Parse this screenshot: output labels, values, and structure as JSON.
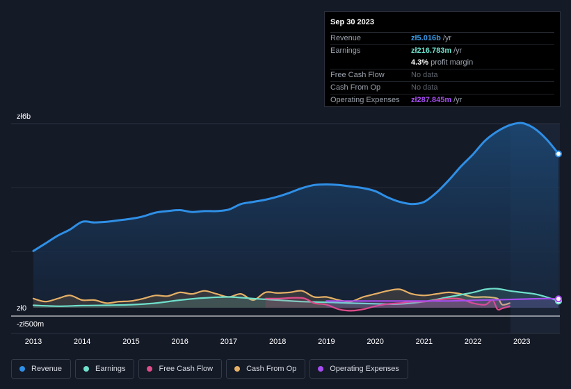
{
  "tooltip": {
    "date": "Sep 30 2023",
    "rows": [
      {
        "label": "Revenue",
        "value": "zł5.016b",
        "unit": "/yr",
        "color": "#3a9be6"
      },
      {
        "label": "Earnings",
        "value": "zł216.783m",
        "unit": "/yr",
        "color": "#6fe0cc"
      },
      {
        "label": "",
        "value": "4.3%",
        "unit": "profit margin",
        "color": "#ffffff"
      },
      {
        "label": "Free Cash Flow",
        "nodata": "No data"
      },
      {
        "label": "Cash From Op",
        "nodata": "No data"
      },
      {
        "label": "Operating Expenses",
        "value": "zł287.845m",
        "unit": "/yr",
        "color": "#a64df0"
      }
    ]
  },
  "legend": [
    {
      "label": "Revenue",
      "color": "#2f8fe6"
    },
    {
      "label": "Earnings",
      "color": "#6fe0cc"
    },
    {
      "label": "Free Cash Flow",
      "color": "#e04c8a"
    },
    {
      "label": "Cash From Op",
      "color": "#e6b066"
    },
    {
      "label": "Operating Expenses",
      "color": "#a64df0"
    }
  ],
  "chart_data": {
    "type": "area",
    "title": "",
    "xlabel": "",
    "ylabel": "",
    "y_axis_labels": [
      "zł6b",
      "zł0",
      "-zł500m"
    ],
    "x_ticks": [
      "2013",
      "2014",
      "2015",
      "2016",
      "2017",
      "2018",
      "2019",
      "2020",
      "2021",
      "2022",
      "2023"
    ],
    "x_range": [
      2013.0,
      2023.75
    ],
    "ylim": [
      -0.5,
      6.0
    ],
    "units": "zł billions",
    "series": [
      {
        "name": "Revenue",
        "color": "#2f8fe6",
        "x": [
          2013.0,
          2013.25,
          2013.5,
          2013.75,
          2014.0,
          2014.25,
          2014.5,
          2014.75,
          2015.0,
          2015.25,
          2015.5,
          2015.75,
          2016.0,
          2016.25,
          2016.5,
          2016.75,
          2017.0,
          2017.25,
          2017.5,
          2017.75,
          2018.0,
          2018.25,
          2018.5,
          2018.75,
          2019.0,
          2019.25,
          2019.5,
          2019.75,
          2020.0,
          2020.25,
          2020.5,
          2020.75,
          2021.0,
          2021.25,
          2021.5,
          2021.75,
          2022.0,
          2022.25,
          2022.5,
          2022.75,
          2023.0,
          2023.25,
          2023.5,
          2023.75
        ],
        "values": [
          1.85,
          2.1,
          2.35,
          2.55,
          2.8,
          2.78,
          2.8,
          2.85,
          2.9,
          2.98,
          3.1,
          3.15,
          3.18,
          3.12,
          3.15,
          3.15,
          3.2,
          3.38,
          3.45,
          3.52,
          3.62,
          3.75,
          3.9,
          4.0,
          4.02,
          4.0,
          3.95,
          3.9,
          3.8,
          3.6,
          3.45,
          3.38,
          3.45,
          3.75,
          4.15,
          4.6,
          5.0,
          5.45,
          5.75,
          5.95,
          6.02,
          5.85,
          5.5,
          5.016
        ]
      },
      {
        "name": "Earnings",
        "color": "#6fe0cc",
        "x": [
          2013.0,
          2013.5,
          2014.0,
          2014.5,
          2015.0,
          2015.5,
          2016.0,
          2016.5,
          2017.0,
          2017.5,
          2018.0,
          2018.5,
          2019.0,
          2019.5,
          2020.0,
          2020.5,
          2021.0,
          2021.5,
          2022.0,
          2022.25,
          2022.5,
          2022.75,
          2023.0,
          2023.25,
          2023.5,
          2023.75
        ],
        "values": [
          0.08,
          0.05,
          0.07,
          0.08,
          0.1,
          0.15,
          0.25,
          0.32,
          0.35,
          0.3,
          0.25,
          0.2,
          0.18,
          0.15,
          0.13,
          0.12,
          0.2,
          0.35,
          0.5,
          0.6,
          0.62,
          0.55,
          0.5,
          0.45,
          0.35,
          0.217
        ]
      },
      {
        "name": "Free Cash Flow",
        "color": "#e04c8a",
        "x": [
          2017.75,
          2018.0,
          2018.5,
          2018.75,
          2019.0,
          2019.25,
          2019.5,
          2019.75,
          2020.0,
          2020.25,
          2020.5,
          2020.75,
          2021.0,
          2021.25,
          2021.5,
          2021.75,
          2022.0,
          2022.25,
          2022.4,
          2022.5,
          2022.6,
          2022.75
        ],
        "values": [
          0.3,
          0.3,
          0.32,
          0.15,
          0.1,
          -0.05,
          -0.1,
          -0.05,
          0.05,
          0.12,
          0.15,
          0.2,
          0.2,
          0.25,
          0.3,
          0.28,
          0.15,
          0.1,
          0.25,
          -0.05,
          -0.02,
          0.05
        ]
      },
      {
        "name": "Cash From Op",
        "color": "#e6b066",
        "x": [
          2013.0,
          2013.25,
          2013.5,
          2013.75,
          2014.0,
          2014.25,
          2014.5,
          2014.75,
          2015.0,
          2015.25,
          2015.5,
          2015.75,
          2016.0,
          2016.25,
          2016.5,
          2016.75,
          2017.0,
          2017.25,
          2017.5,
          2017.75,
          2018.0,
          2018.25,
          2018.5,
          2018.75,
          2019.0,
          2019.25,
          2019.5,
          2019.75,
          2020.0,
          2020.25,
          2020.5,
          2020.75,
          2021.0,
          2021.25,
          2021.5,
          2021.75,
          2022.0,
          2022.25,
          2022.5,
          2022.6,
          2022.75
        ],
        "values": [
          0.3,
          0.2,
          0.3,
          0.4,
          0.25,
          0.25,
          0.15,
          0.2,
          0.22,
          0.3,
          0.4,
          0.38,
          0.5,
          0.45,
          0.55,
          0.45,
          0.35,
          0.45,
          0.25,
          0.5,
          0.48,
          0.5,
          0.55,
          0.35,
          0.35,
          0.25,
          0.2,
          0.35,
          0.45,
          0.55,
          0.6,
          0.45,
          0.4,
          0.45,
          0.5,
          0.45,
          0.35,
          0.35,
          0.3,
          0.1,
          0.15
        ]
      },
      {
        "name": "Operating Expenses",
        "color": "#a64df0",
        "x": [
          2019.0,
          2019.5,
          2020.0,
          2020.5,
          2021.0,
          2021.5,
          2022.0,
          2022.5,
          2023.0,
          2023.5,
          2023.75
        ],
        "values": [
          0.22,
          0.22,
          0.22,
          0.22,
          0.22,
          0.22,
          0.24,
          0.26,
          0.28,
          0.3,
          0.288
        ]
      }
    ]
  }
}
